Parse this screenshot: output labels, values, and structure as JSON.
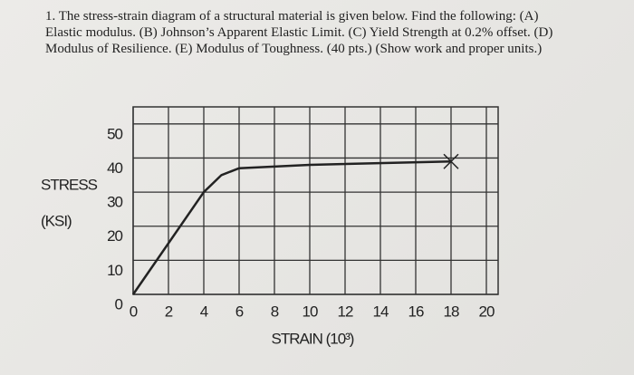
{
  "question": {
    "lines": [
      "1.  The stress-strain diagram of a structural material is given below.  Find the following: (A)",
      "Elastic modulus.  (B) Johnson’s Apparent Elastic Limit.  (C) Yield Strength at 0.2% offset.  (D)",
      "Modulus of Resilience.  (E) Modulus of Toughness.  (40 pts.) (Show work and proper units.)"
    ]
  },
  "chart_data": {
    "type": "line",
    "y_label_lines": [
      "STRESS",
      "(KSI)"
    ],
    "x_label": "STRAIN (10³)",
    "x": [
      0,
      4,
      5,
      6,
      10,
      18
    ],
    "values": [
      0,
      30,
      35,
      37,
      38,
      39
    ],
    "color": "#222222",
    "xlim": [
      0,
      20
    ],
    "ylim": [
      0,
      55
    ],
    "xticks": [
      0,
      2,
      4,
      6,
      8,
      10,
      12,
      14,
      16,
      18,
      20
    ],
    "yticks": [
      0,
      10,
      20,
      30,
      40,
      50
    ],
    "grid": true
  }
}
